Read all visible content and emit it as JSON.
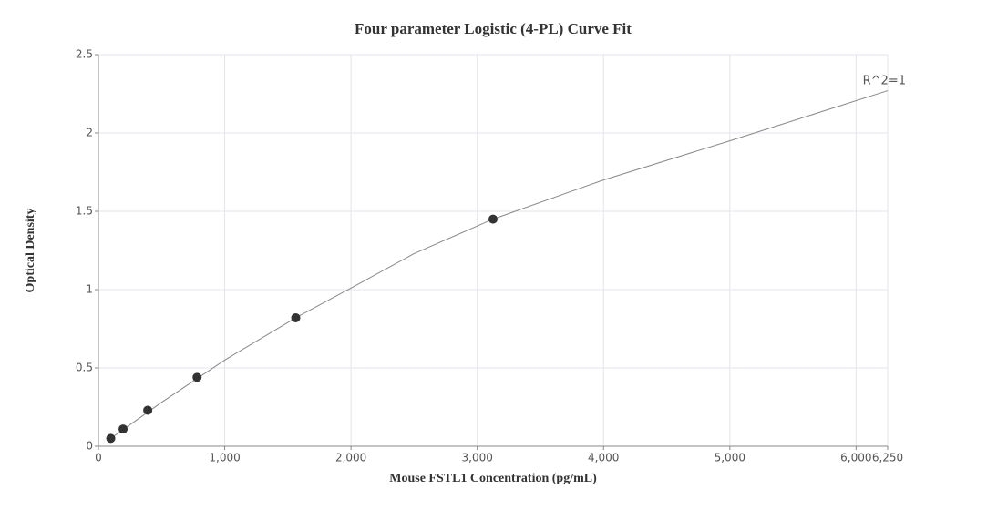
{
  "chart_data": {
    "type": "scatter",
    "title": "Four parameter Logistic (4-PL) Curve Fit",
    "x_label": "Mouse FSTL1 Concentration (pg/mL)",
    "y_label": "Optical Density",
    "annotation": "R^2=1",
    "series": [
      {
        "type": "line",
        "color": "#888888",
        "x": [
          97.66,
          500,
          1000,
          1562.5,
          2000,
          2500,
          3125,
          4000,
          5000,
          6250
        ],
        "values": [
          0.05,
          0.28,
          0.55,
          0.82,
          1.01,
          1.23,
          1.45,
          1.7,
          1.95,
          2.27
        ]
      },
      {
        "type": "scatter",
        "color": "#333333",
        "x": [
          97.66,
          195.3,
          390.6,
          781.25,
          1562.5,
          3125
        ],
        "values": [
          0.05,
          0.11,
          0.23,
          0.44,
          0.82,
          1.45
        ]
      }
    ],
    "xlim": [
      0,
      6250
    ],
    "xticks": [
      0,
      {
        "value": 1000,
        "label": "1,000"
      },
      {
        "value": 2000,
        "label": "2,000"
      },
      {
        "value": 3000,
        "label": "3,000"
      },
      {
        "value": 4000,
        "label": "4,000"
      },
      {
        "value": 5000,
        "label": "5,000"
      },
      {
        "value": 6000,
        "label": "6,000"
      },
      {
        "value": 6250,
        "label": "6,250"
      }
    ],
    "ylim": [
      0,
      2.5
    ],
    "yticks": [
      0,
      0.5,
      1,
      1.5,
      2,
      2.5
    ],
    "grid": true
  }
}
